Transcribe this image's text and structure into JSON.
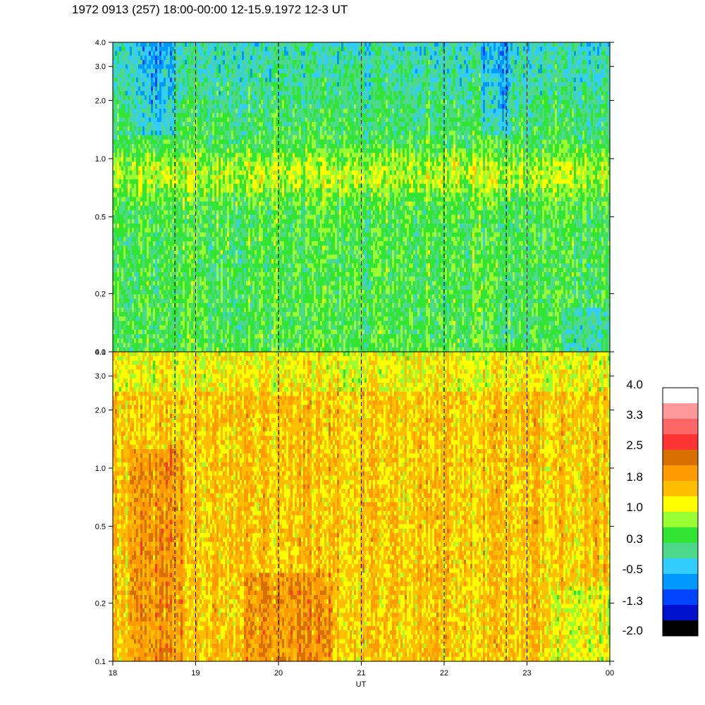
{
  "title": "1972 0913 (257) 18:00-00:00 12-15.9.1972  12-3 UT",
  "chart_data": {
    "type": "heatmap",
    "xlabel": "UT",
    "x_ticks": [
      "18",
      "19",
      "20",
      "21",
      "22",
      "23",
      "00"
    ],
    "x_range": [
      18,
      24
    ],
    "y_scale": "log",
    "y_range": [
      0.1,
      4.0
    ],
    "y_ticks": [
      "0.1",
      "0.2",
      "0.5",
      "1.0",
      "2.0",
      "3.0",
      "4.0"
    ],
    "y_tick_values": [
      0.1,
      0.2,
      0.5,
      1.0,
      2.0,
      3.0,
      4.0
    ],
    "vertical_dashed_lines": [
      18.75,
      19,
      20,
      21,
      22,
      22.75,
      23
    ],
    "panels": [
      {
        "name": "upper",
        "dominant_color": "green",
        "level_range": [
          -1.3,
          1.4
        ]
      },
      {
        "name": "lower",
        "dominant_color": "orange",
        "level_range": [
          0.6,
          2.5
        ]
      }
    ],
    "colorbar": {
      "labels": [
        "4.0",
        "3.3",
        "2.5",
        "1.8",
        "1.0",
        "0.3",
        "-0.5",
        "-1.3",
        "-2.0"
      ],
      "colors": [
        "#ffffff",
        "#ff9999",
        "#ff6666",
        "#ff3333",
        "#d87000",
        "#ff9a00",
        "#ffbf00",
        "#ffff00",
        "#99ff33",
        "#33e533",
        "#4dd98c",
        "#33ccff",
        "#0099ff",
        "#0044ff",
        "#0011cc",
        "#000000"
      ]
    }
  }
}
